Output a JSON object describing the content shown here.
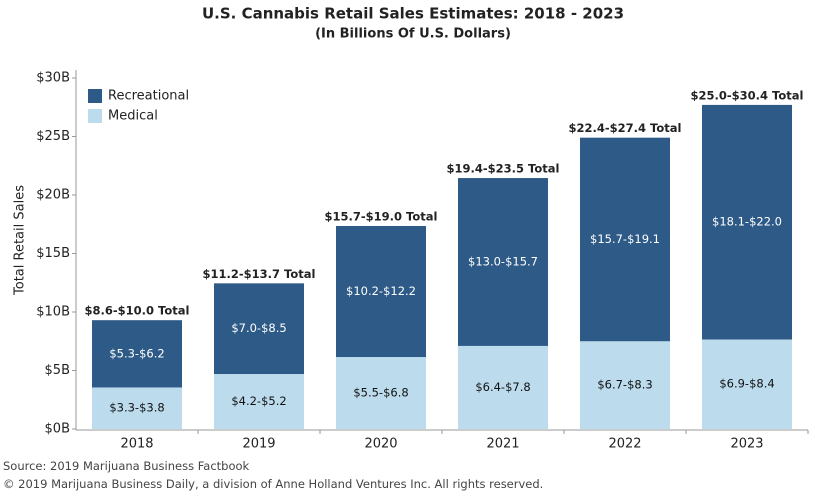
{
  "chart_data": {
    "type": "stacked-bar",
    "title": "U.S. Cannabis Retail Sales Estimates: 2018 - 2023",
    "subtitle": "(In Billions Of U.S. Dollars)",
    "y_label": "Total Retail Sales",
    "categories": [
      "2018",
      "2019",
      "2020",
      "2021",
      "2022",
      "2023"
    ],
    "series": [
      {
        "name": "Medical",
        "color": "#bcdcee",
        "label_color": "#111111",
        "values": [
          3.55,
          4.7,
          6.15,
          7.1,
          7.5,
          7.65
        ],
        "value_labels": [
          "$3.3-$3.8",
          "$4.2-$5.2",
          "$5.5-$6.8",
          "$6.4-$7.8",
          "$6.7-$8.3",
          "$6.9-$8.4"
        ]
      },
      {
        "name": "Recreational",
        "color": "#2e5a87",
        "label_color": "#ffffff",
        "values": [
          5.75,
          7.75,
          11.2,
          14.35,
          17.4,
          20.05
        ],
        "value_labels": [
          "$5.3-$6.2",
          "$7.0-$8.5",
          "$10.2-$12.2",
          "$13.0-$15.7",
          "$15.7-$19.1",
          "$18.1-$22.0"
        ]
      }
    ],
    "total_labels": [
      "$8.6-$10.0 Total",
      "$11.2-$13.7 Total",
      "$15.7-$19.0 Total",
      "$19.4-$23.5 Total",
      "$22.4-$27.4 Total",
      "$25.0-$30.4 Total"
    ],
    "ylim": [
      0,
      30
    ],
    "yticks": [
      {
        "value": 0,
        "label": "$0B"
      },
      {
        "value": 5,
        "label": "$5B"
      },
      {
        "value": 10,
        "label": "$10B"
      },
      {
        "value": 15,
        "label": "$15B"
      },
      {
        "value": 20,
        "label": "$20B"
      },
      {
        "value": 25,
        "label": "$25B"
      },
      {
        "value": 30,
        "label": "$30B"
      }
    ],
    "legend": "top-left",
    "source": "Source: 2019 Marijuana Business Factbook",
    "copyright": "© 2019 Marijuana Business Daily, a division of Anne Holland Ventures Inc. All rights reserved."
  }
}
